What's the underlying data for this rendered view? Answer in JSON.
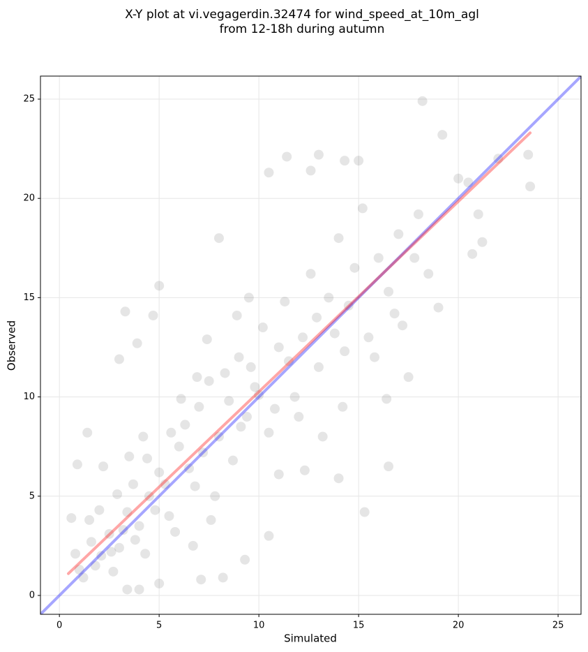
{
  "chart_data": {
    "type": "scatter",
    "title": [
      "X-Y plot at vi.vegagerdin.32474 for wind_speed_at_10m_agl",
      "from 12-18h during autumn"
    ],
    "xlabel": "Simulated",
    "ylabel": "Observed",
    "xlim": [
      -0.95,
      26.15
    ],
    "ylim": [
      -0.95,
      26.16
    ],
    "xticks": [
      0,
      5,
      10,
      15,
      20,
      25
    ],
    "yticks": [
      0,
      5,
      10,
      15,
      20,
      25
    ],
    "grid": true,
    "color": "#000000",
    "opacity": 0.1,
    "x": [
      2.1,
      2.5,
      1.8,
      3.0,
      3.4,
      4.0,
      4.5,
      3.8,
      2.9,
      1.5,
      1.2,
      0.8,
      0.6,
      2.2,
      3.5,
      4.2,
      5.0,
      5.5,
      6.0,
      6.3,
      6.8,
      7.0,
      7.5,
      8.0,
      8.3,
      8.7,
      9.0,
      9.4,
      9.8,
      10.2,
      10.5,
      11.0,
      11.3,
      11.8,
      12.2,
      12.6,
      13.0,
      13.5,
      14.0,
      14.3,
      14.8,
      15.2,
      15.5,
      16.0,
      16.5,
      17.0,
      17.5,
      18.0,
      18.2,
      18.5,
      19.2,
      20.0,
      20.7,
      21.0,
      23.5,
      23.6,
      15.3,
      16.5,
      14.0,
      10.5,
      9.3,
      8.2,
      7.1,
      5.0,
      4.0,
      3.4,
      5.0,
      3.3,
      4.7,
      3.9,
      3.0,
      8.0,
      10.5,
      11.4,
      13.0,
      14.3,
      15.0,
      12.6,
      1.0,
      1.6,
      2.7,
      3.2,
      4.3,
      4.8,
      5.3,
      5.8,
      6.5,
      7.2,
      7.8,
      8.5,
      9.1,
      9.6,
      10.0,
      10.8,
      11.5,
      12.0,
      12.9,
      13.8,
      14.5,
      15.8,
      16.8,
      17.8,
      19.0,
      20.5,
      21.2,
      22.0,
      2.0,
      2.6,
      3.7,
      4.4,
      5.6,
      6.1,
      6.9,
      7.4,
      8.9,
      9.5,
      1.4,
      0.9,
      6.7,
      7.6,
      11.0,
      12.3,
      13.2,
      14.2,
      16.4,
      17.2
    ],
    "values": [
      2.0,
      3.1,
      1.5,
      2.4,
      4.2,
      3.5,
      5.0,
      2.8,
      5.1,
      3.8,
      0.9,
      2.1,
      3.9,
      6.5,
      7.0,
      8.0,
      6.2,
      4.0,
      7.5,
      8.6,
      5.5,
      9.5,
      10.8,
      8.0,
      11.2,
      6.8,
      12.0,
      9.0,
      10.5,
      13.5,
      8.2,
      12.5,
      14.8,
      10.0,
      13.0,
      16.2,
      11.5,
      15.0,
      18.0,
      12.3,
      16.5,
      19.5,
      13.0,
      17.0,
      15.3,
      18.2,
      11.0,
      19.2,
      24.9,
      16.2,
      23.2,
      21.0,
      17.2,
      19.2,
      22.2,
      20.6,
      4.2,
      6.5,
      5.9,
      3.0,
      1.8,
      0.9,
      0.8,
      0.6,
      0.3,
      0.3,
      15.6,
      14.3,
      14.1,
      12.7,
      11.9,
      18.0,
      21.3,
      22.1,
      22.2,
      21.9,
      21.9,
      21.4,
      1.3,
      2.7,
      1.2,
      3.3,
      2.1,
      4.3,
      5.6,
      3.2,
      6.4,
      7.2,
      5.0,
      9.8,
      8.5,
      11.5,
      10.1,
      9.4,
      11.8,
      9.0,
      14.0,
      13.2,
      14.6,
      12.0,
      14.2,
      17.0,
      14.5,
      20.8,
      17.8,
      22.0,
      4.3,
      2.2,
      5.6,
      6.9,
      8.2,
      9.9,
      11.0,
      12.9,
      14.1,
      15.0,
      8.2,
      6.6,
      2.5,
      3.8,
      6.1,
      6.3,
      8.0,
      9.5,
      9.9,
      13.6
    ],
    "lines": [
      {
        "color": "#0000ff",
        "x": [
          -0.95,
          26.15
        ],
        "y": [
          -0.95,
          26.15
        ]
      },
      {
        "color": "#ff0000",
        "x": [
          0.45,
          23.6
        ],
        "y": [
          1.1,
          23.3
        ]
      }
    ]
  }
}
